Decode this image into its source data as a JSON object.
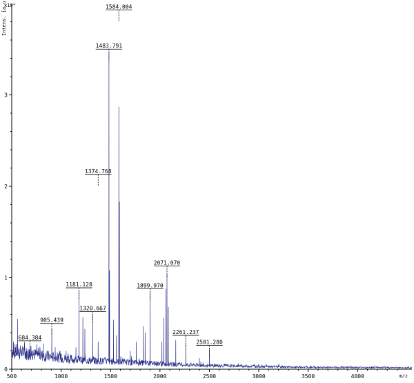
{
  "chart_data": {
    "type": "line",
    "xlabel": "m/z",
    "ylabel": "Intens. [a.u.]",
    "y_exponent": "x10⁴",
    "xlim": [
      500,
      4550
    ],
    "ylim": [
      0,
      4
    ],
    "x_ticks": [
      "500",
      "1000",
      "1500",
      "2000",
      "2500",
      "3000",
      "3500",
      "4000"
    ],
    "x_tick_values": [
      500,
      1000,
      1500,
      2000,
      2500,
      3000,
      3500,
      4000
    ],
    "y_ticks": [
      "0",
      "1",
      "2",
      "3"
    ],
    "y_tick_values": [
      0,
      1,
      2,
      3
    ],
    "baseline": [
      [
        500,
        0.2
      ],
      [
        600,
        0.18
      ],
      [
        800,
        0.15
      ],
      [
        1000,
        0.12
      ],
      [
        1200,
        0.1
      ],
      [
        1400,
        0.09
      ],
      [
        1600,
        0.08
      ],
      [
        1800,
        0.07
      ],
      [
        2000,
        0.06
      ],
      [
        2200,
        0.05
      ],
      [
        2500,
        0.04
      ],
      [
        3000,
        0.03
      ],
      [
        3500,
        0.02
      ],
      [
        4000,
        0.02
      ],
      [
        4550,
        0.015
      ]
    ],
    "peaks": [
      {
        "mz": 540,
        "intensity": 0.24
      },
      {
        "mz": 560,
        "intensity": 0.55
      },
      {
        "mz": 600,
        "intensity": 0.2
      },
      {
        "mz": 684.384,
        "intensity": 0.26
      },
      {
        "mz": 820,
        "intensity": 0.28
      },
      {
        "mz": 905.439,
        "intensity": 0.44
      },
      {
        "mz": 940,
        "intensity": 0.24
      },
      {
        "mz": 1050,
        "intensity": 0.2
      },
      {
        "mz": 1150,
        "intensity": 0.24
      },
      {
        "mz": 1181.128,
        "intensity": 0.86
      },
      {
        "mz": 1220,
        "intensity": 0.57
      },
      {
        "mz": 1240,
        "intensity": 0.44
      },
      {
        "mz": 1320.667,
        "intensity": 0.6
      },
      {
        "mz": 1374.768,
        "intensity": 0.3
      },
      {
        "mz": 1483.791,
        "intensity": 3.47
      },
      {
        "mz": 1490,
        "intensity": 1.08
      },
      {
        "mz": 1530,
        "intensity": 0.54
      },
      {
        "mz": 1560,
        "intensity": 0.37
      },
      {
        "mz": 1584.004,
        "intensity": 2.87
      },
      {
        "mz": 1590,
        "intensity": 1.83
      },
      {
        "mz": 1700,
        "intensity": 0.2
      },
      {
        "mz": 1760,
        "intensity": 0.3
      },
      {
        "mz": 1830,
        "intensity": 0.47
      },
      {
        "mz": 1850,
        "intensity": 0.4
      },
      {
        "mz": 1899.97,
        "intensity": 0.85
      },
      {
        "mz": 2020,
        "intensity": 0.3
      },
      {
        "mz": 2040,
        "intensity": 0.56
      },
      {
        "mz": 2060,
        "intensity": 0.88
      },
      {
        "mz": 2071.07,
        "intensity": 1.04
      },
      {
        "mz": 2085,
        "intensity": 0.68
      },
      {
        "mz": 2160,
        "intensity": 0.32
      },
      {
        "mz": 2261.237,
        "intensity": 0.28
      },
      {
        "mz": 2400,
        "intensity": 0.12
      },
      {
        "mz": 2501.28,
        "intensity": 0.23
      }
    ],
    "annotations": [
      {
        "label": "1584.004",
        "mz": 1584.004,
        "intensity": 3.9
      },
      {
        "label": "1483.791",
        "mz": 1483.791,
        "intensity": 3.47
      },
      {
        "label": "1374.768",
        "mz": 1374.768,
        "intensity": 2.1
      },
      {
        "label": "2071.070",
        "mz": 2071.07,
        "intensity": 1.1
      },
      {
        "label": "1181.128",
        "mz": 1181.128,
        "intensity": 0.86
      },
      {
        "label": "1899.970",
        "mz": 1899.97,
        "intensity": 0.85
      },
      {
        "label": "1320.667",
        "mz": 1320.667,
        "intensity": 0.6
      },
      {
        "label": "905.439",
        "mz": 905.439,
        "intensity": 0.47
      },
      {
        "label": "2261.237",
        "mz": 2261.237,
        "intensity": 0.34
      },
      {
        "label": "684.384",
        "mz": 684.384,
        "intensity": 0.28
      },
      {
        "label": "2501.280",
        "mz": 2501.28,
        "intensity": 0.23
      }
    ],
    "colors": {
      "spectrum": "#2b2f8a",
      "axis": "#000000"
    }
  }
}
